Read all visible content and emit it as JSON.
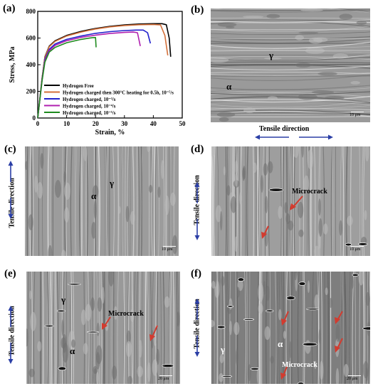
{
  "panels": {
    "a": "(a)",
    "b": "(b)",
    "c": "(c)",
    "d": "(d)",
    "e": "(e)",
    "f": "(f)"
  },
  "labels": {
    "gamma": "γ",
    "alpha": "α",
    "microcrack": "Microcrack",
    "tensile_direction": "Tensile direction",
    "scale_10": "10 μm",
    "scale_20": "20 μm"
  },
  "chart_data": {
    "type": "line",
    "xlabel": "Strain, %",
    "ylabel": "Stress, MPa",
    "xlim": [
      0,
      50
    ],
    "ylim": [
      0,
      800
    ],
    "xticks": [
      0,
      10,
      20,
      30,
      40,
      50
    ],
    "yticks": [
      0,
      200,
      400,
      600,
      800
    ],
    "legend_position": "bottom-left",
    "series": [
      {
        "name": "Hydrogen Free",
        "color": "#000000",
        "x": [
          0,
          1.5,
          2.5,
          4,
          6,
          10,
          15,
          20,
          25,
          30,
          35,
          40,
          43,
          44.5,
          45.5,
          46
        ],
        "y": [
          0,
          300,
          460,
          540,
          580,
          620,
          650,
          672,
          688,
          698,
          705,
          708,
          708,
          700,
          600,
          460
        ]
      },
      {
        "name": "Hydrogen charged then 300°C heating for 0.5h, 10⁻⁵/s",
        "color": "#d4703a",
        "x": [
          0,
          1.5,
          2.5,
          4,
          6,
          10,
          15,
          20,
          25,
          30,
          35,
          40,
          42.5,
          44,
          45
        ],
        "y": [
          0,
          300,
          455,
          535,
          575,
          615,
          645,
          668,
          684,
          694,
          700,
          702,
          698,
          620,
          470
        ]
      },
      {
        "name": "Hydrogen charged, 10⁻³/s",
        "color": "#2222cc",
        "x": [
          0,
          1.5,
          2.5,
          4,
          6,
          10,
          15,
          20,
          25,
          30,
          34,
          36.5,
          38,
          39
        ],
        "y": [
          0,
          290,
          440,
          515,
          555,
          590,
          615,
          635,
          648,
          656,
          660,
          660,
          640,
          560
        ]
      },
      {
        "name": "Hydrogen charged, 10⁻⁴/s",
        "color": "#b020b0",
        "x": [
          0,
          1.5,
          2.5,
          4,
          6,
          10,
          15,
          20,
          25,
          30,
          33,
          34.5,
          35.5
        ],
        "y": [
          0,
          285,
          430,
          505,
          545,
          580,
          605,
          622,
          634,
          642,
          645,
          640,
          540
        ]
      },
      {
        "name": "Hydrogen charged, 10⁻⁵/s",
        "color": "#1e8a1e",
        "x": [
          0,
          1.5,
          2.5,
          4,
          6,
          10,
          15,
          19,
          20,
          20.2
        ],
        "y": [
          0,
          280,
          420,
          495,
          530,
          565,
          590,
          603,
          604,
          530
        ]
      }
    ]
  }
}
